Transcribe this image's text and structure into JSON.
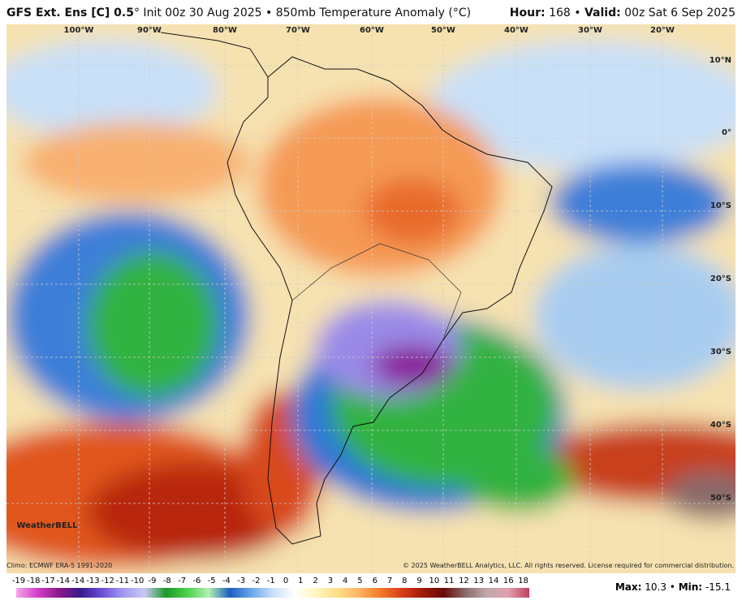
{
  "header": {
    "title_bold": "GFS Ext. Ens [C] 0.5",
    "title_rest": "° Init 00z 30 Aug 2025 • 850mb Temperature Anomaly (°C)",
    "hour_label": "Hour:",
    "hour": "168",
    "separator": "•",
    "valid_label": "Valid:",
    "valid": "00z Sat 6 Sep 2025"
  },
  "map": {
    "longitudes": [
      "100°W",
      "90°W",
      "80°W",
      "70°W",
      "60°W",
      "50°W",
      "40°W",
      "30°W",
      "20°W"
    ],
    "latitudes": [
      "10°N",
      "0°",
      "10°S",
      "20°S",
      "30°S",
      "40°S",
      "50°S"
    ],
    "logo": "WeatherBELL"
  },
  "footer": {
    "climo": "Climo: ECMWF ERA-5 1991-2020",
    "copyright": "© 2025 WeatherBELL Analytics, LLC. All rights reserved. License required for commercial distribution.",
    "scale_labels": [
      "-19",
      "-18",
      "-17",
      "-14",
      "-14",
      "-13",
      "-12",
      "-11",
      "-10",
      "-9",
      "-8",
      "-7",
      "-6",
      "-5",
      "-4",
      "-3",
      "-2",
      "-1",
      "0",
      "1",
      "2",
      "3",
      "4",
      "5",
      "6",
      "7",
      "8",
      "9",
      "10",
      "11",
      "12",
      "13",
      "14",
      "16",
      "18"
    ],
    "max_label": "Max:",
    "max": "10.3",
    "min_label": "Min:",
    "min": "-15.1"
  }
}
